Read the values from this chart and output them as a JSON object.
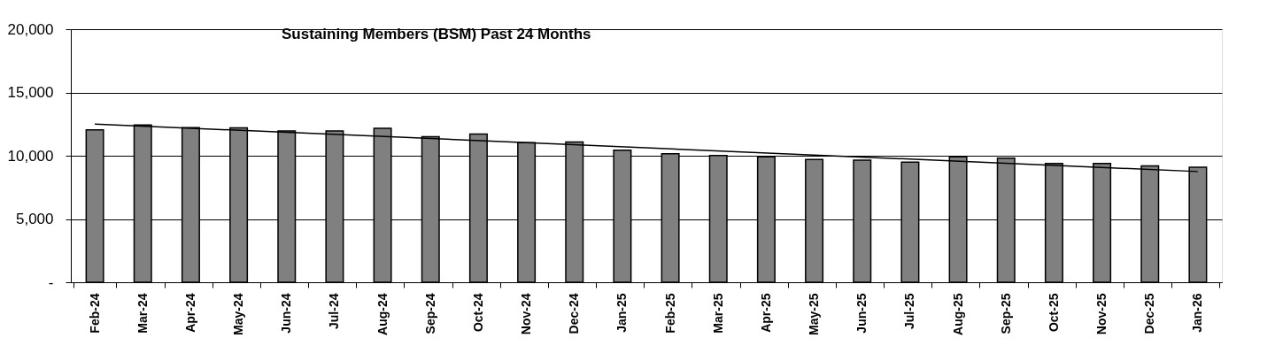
{
  "chart_data": {
    "type": "bar",
    "title": "Sustaining Members (BSM) Past 24 Months",
    "categories": [
      "Feb-24",
      "Mar-24",
      "Apr-24",
      "May-24",
      "Jun-24",
      "Jul-24",
      "Aug-24",
      "Sep-24",
      "Oct-24",
      "Nov-24",
      "Dec-24",
      "Jan-25",
      "Feb-25",
      "Mar-25",
      "Apr-25",
      "May-25",
      "Jun-25",
      "Jul-25",
      "Aug-25",
      "Sep-25",
      "Oct-25",
      "Nov-25",
      "Dec-25",
      "Jan-26"
    ],
    "series": [
      {
        "color": "#808080",
        "values": [
          12050,
          12430,
          12220,
          12200,
          11950,
          11950,
          12160,
          11500,
          11710,
          11030,
          11080,
          10430,
          10160,
          10010,
          9920,
          9710,
          9650,
          9500,
          9920,
          9800,
          9390,
          9390,
          9200,
          9090
        ]
      },
      {
        "type": "line",
        "color": "#000000",
        "x": [
          "Feb-24",
          "Jan-26"
        ],
        "values": [
          12500,
          8750
        ]
      }
    ],
    "ylim": [
      0,
      20000
    ],
    "yticks": [
      {
        "value": 0,
        "label": "-"
      },
      {
        "value": 5000,
        "label": "5,000"
      },
      {
        "value": 10000,
        "label": "10,000"
      },
      {
        "value": 15000,
        "label": "15,000"
      },
      {
        "value": 20000,
        "label": "20,000"
      }
    ],
    "grid": "y",
    "marker": "none",
    "line_style": "solid"
  }
}
